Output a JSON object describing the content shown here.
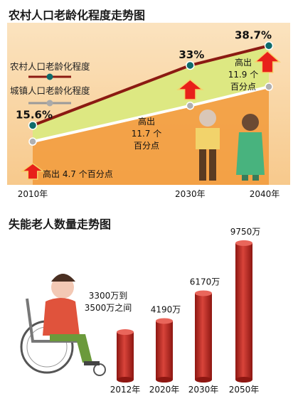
{
  "chart_data": [
    {
      "type": "area",
      "title": "农村人口老龄化程度走势图",
      "categories": [
        "2010年",
        "2030年",
        "2040年"
      ],
      "series": [
        {
          "name": "农村人口老龄化程度",
          "values": [
            15.6,
            33,
            38.7
          ],
          "labels": [
            "15.6%",
            "33%",
            "38.7%"
          ],
          "color": "#8b1a12"
        },
        {
          "name": "城镇人口老龄化程度",
          "values": [
            10.9,
            21.3,
            26.8
          ],
          "color": "#9a9a9a"
        }
      ],
      "gap_annotations": [
        {
          "text": "高出 4.7 个百分点",
          "lines": [
            "高出 4.7 个百分点"
          ]
        },
        {
          "text": "高出11.7个百分点",
          "lines": [
            "高出",
            "11.7 个",
            "百分点"
          ]
        },
        {
          "text": "高出11.9个百分点",
          "lines": [
            "高出",
            "11.9 个",
            "百分点"
          ]
        }
      ],
      "ylim": [
        0,
        40
      ]
    },
    {
      "type": "bar",
      "title": "失能老人数量走势图",
      "categories": [
        "2012年",
        "2020年",
        "2030年",
        "2050年"
      ],
      "values": [
        3400,
        4190,
        6170,
        9750
      ],
      "value_labels": [
        [
          "3300万到",
          "3500万之间"
        ],
        [
          "4190万"
        ],
        [
          "6170万"
        ],
        [
          "9750万"
        ]
      ],
      "color": "#b8231c",
      "ylim": [
        0,
        10000
      ]
    }
  ]
}
